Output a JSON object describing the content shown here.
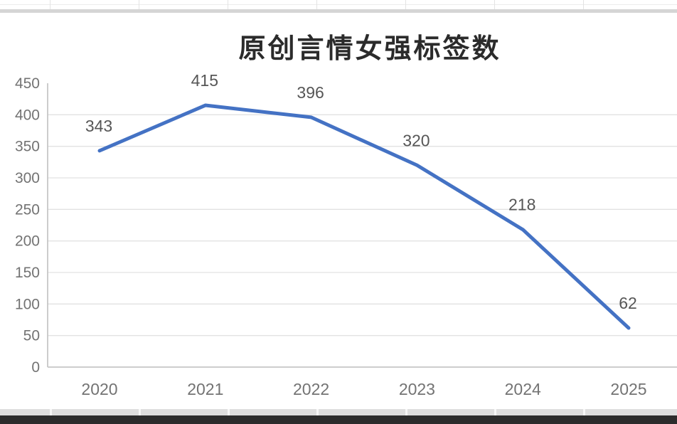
{
  "chart_data": {
    "type": "line",
    "title": "原创言情女强标签数",
    "categories": [
      "2020",
      "2021",
      "2022",
      "2023",
      "2024",
      "2025"
    ],
    "series": [
      {
        "name": "原创言情女强标签数",
        "values": [
          343,
          415,
          396,
          320,
          218,
          62
        ]
      }
    ],
    "data_labels_visible": true,
    "xlabel": "",
    "ylabel": "",
    "ylim": [
      0,
      450
    ],
    "yticks": [
      0,
      50,
      100,
      150,
      200,
      250,
      300,
      350,
      400,
      450
    ],
    "grid": "horizontal",
    "legend": "none"
  },
  "colors": {
    "line": "#4472c4",
    "gridline": "#e2e2e2",
    "axis": "#c6c6c6",
    "title_text": "#2b2b2b",
    "axis_label_text": "#737373",
    "data_label_text": "#565656",
    "sheet_band": "#d5d5d5",
    "taskbar_strip": "#2c2c2c"
  }
}
